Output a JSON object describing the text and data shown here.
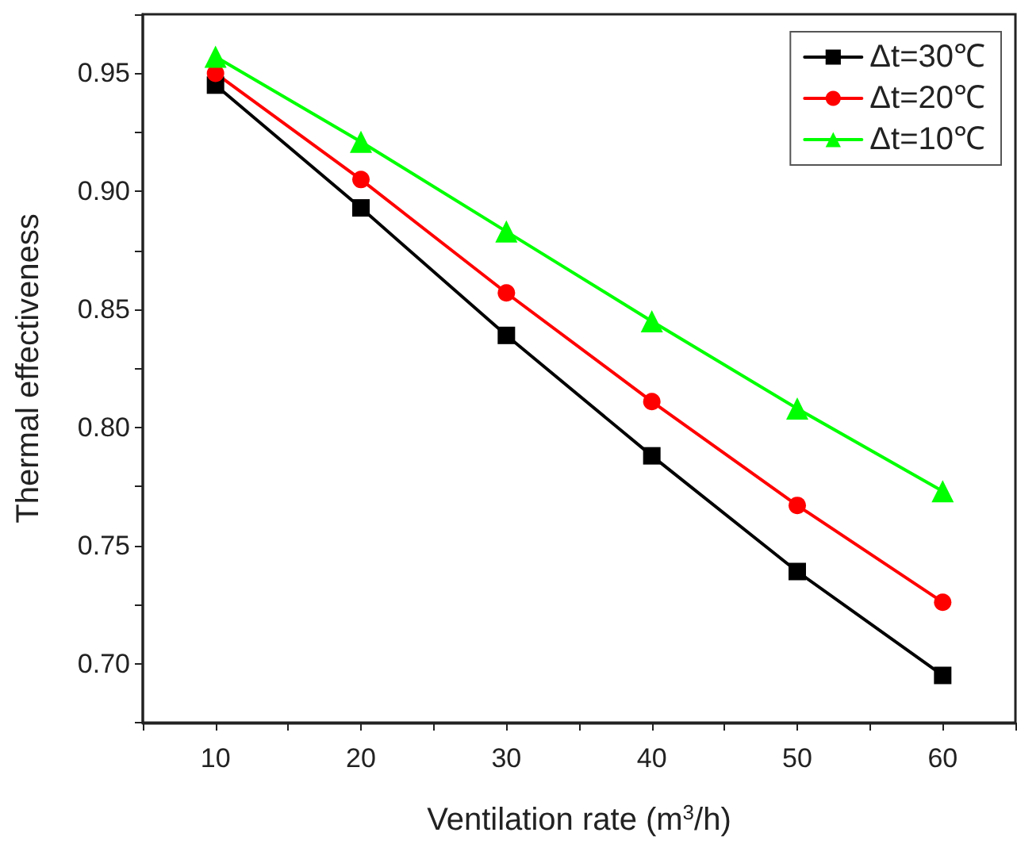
{
  "chart_data": {
    "type": "line",
    "xlabel": "Ventilation rate (m$^{3}$/h)",
    "ylabel": "Thermal effectiveness",
    "x": [
      10,
      20,
      30,
      40,
      50,
      60
    ],
    "series": [
      {
        "name": "Δt=30℃",
        "color": "#000000",
        "marker": "square",
        "values": [
          0.945,
          0.893,
          0.839,
          0.788,
          0.739,
          0.695
        ]
      },
      {
        "name": "Δt=20℃",
        "color": "#ff0000",
        "marker": "circle",
        "values": [
          0.95,
          0.905,
          0.857,
          0.811,
          0.767,
          0.726
        ]
      },
      {
        "name": "Δt=10℃",
        "color": "#00ff00",
        "marker": "triangle",
        "values": [
          0.957,
          0.921,
          0.883,
          0.845,
          0.808,
          0.773
        ]
      }
    ],
    "xlim": [
      5,
      65
    ],
    "ylim": [
      0.675,
      0.975
    ],
    "xticks": [
      {
        "value": 5,
        "label": null
      },
      10,
      {
        "value": 15,
        "label": null
      },
      20,
      {
        "value": 25,
        "label": null
      },
      30,
      {
        "value": 35,
        "label": null
      },
      40,
      {
        "value": 45,
        "label": null
      },
      50,
      {
        "value": 55,
        "label": null
      },
      60,
      {
        "value": 65,
        "label": null
      }
    ],
    "yticks": [
      {
        "value": 0.675,
        "label": null
      },
      {
        "value": 0.7,
        "label": "0.70"
      },
      {
        "value": 0.725,
        "label": null
      },
      {
        "value": 0.75,
        "label": "0.75"
      },
      {
        "value": 0.775,
        "label": null
      },
      {
        "value": 0.8,
        "label": "0.80"
      },
      {
        "value": 0.825,
        "label": null
      },
      {
        "value": 0.85,
        "label": "0.85"
      },
      {
        "value": 0.875,
        "label": null
      },
      {
        "value": 0.9,
        "label": "0.90"
      },
      {
        "value": 0.925,
        "label": null
      },
      {
        "value": 0.95,
        "label": "0.95"
      },
      {
        "value": 0.975,
        "label": null
      }
    ],
    "grid": false,
    "legend": "top right",
    "line_style": "solid"
  }
}
